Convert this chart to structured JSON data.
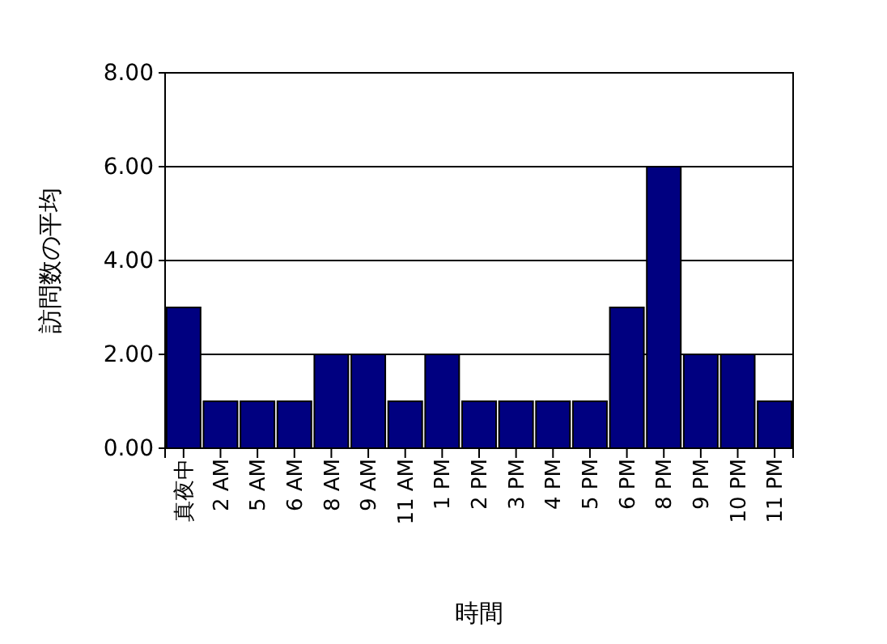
{
  "chart_data": {
    "type": "bar",
    "xlabel": "時間",
    "ylabel": "訪問数の平均",
    "categories": [
      "真夜中",
      "2 AM",
      "5 AM",
      "6 AM",
      "8 AM",
      "9 AM",
      "11 AM",
      "1 PM",
      "2 PM",
      "3 PM",
      "4 PM",
      "5 PM",
      "6 PM",
      "8 PM",
      "9 PM",
      "10 PM",
      "11 PM"
    ],
    "values": [
      3,
      1,
      1,
      1,
      2,
      2,
      1,
      2,
      1,
      1,
      1,
      1,
      3,
      6,
      2,
      2,
      1
    ],
    "color": "#000080",
    "ylim": [
      0,
      8
    ],
    "yticks": [
      {
        "value": 0,
        "label": "0.00"
      },
      {
        "value": 2,
        "label": "2.00"
      },
      {
        "value": 4,
        "label": "4.00"
      },
      {
        "value": 6,
        "label": "6.00"
      },
      {
        "value": 8,
        "label": "8.00"
      }
    ],
    "grid": "y"
  }
}
